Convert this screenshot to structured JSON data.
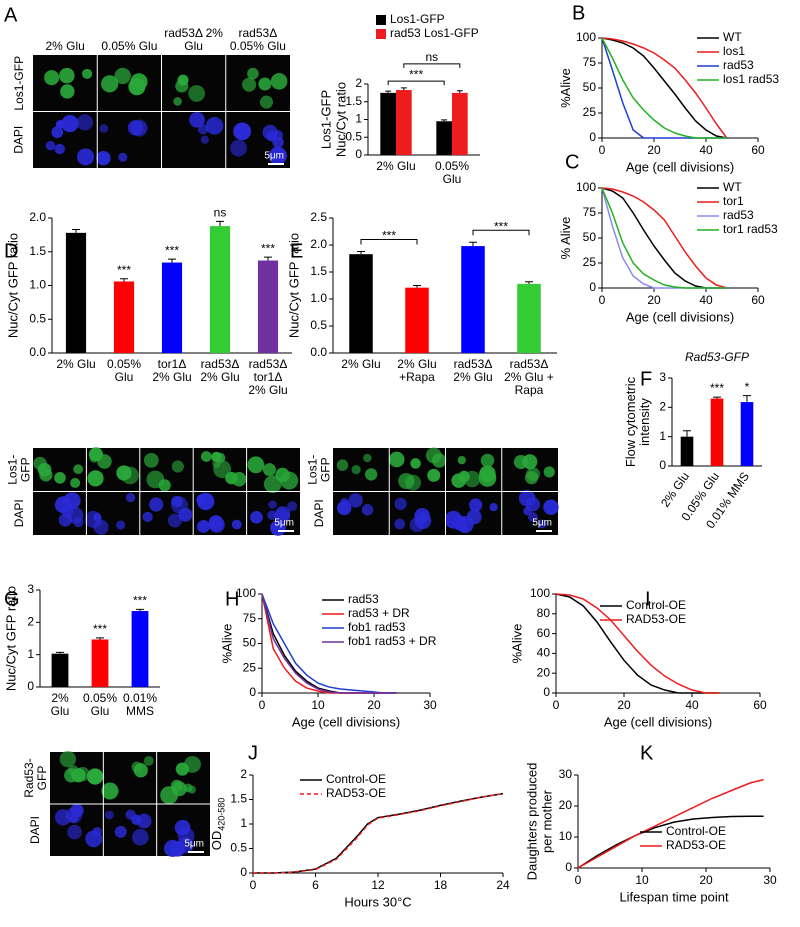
{
  "panels": [
    "A",
    "B",
    "C",
    "D",
    "E",
    "F",
    "G",
    "H",
    "I",
    "J",
    "K"
  ],
  "micrographs": [
    {
      "columns": [
        "2% Glu",
        "0.05% Glu",
        "rad53Δ 2% Glu",
        "rad53Δ 0.05% Glu"
      ],
      "rows": [
        "Los1-GFP",
        "DAPI"
      ],
      "scale": "5μm"
    },
    {
      "rows": [
        "Los1-GFP",
        "DAPI"
      ],
      "scale": "5μm"
    },
    {
      "rows": [
        "Los1-GFP",
        "DAPI"
      ],
      "scale": "5μm"
    },
    {
      "rows": [
        "Rad53-GFP",
        "DAPI"
      ],
      "scale": "5μm"
    }
  ],
  "chart_data": [
    {
      "type": "bar",
      "ylabel": "Los1-GFP Nuc/Cyt ratio",
      "categories": [
        "2% Glu",
        "0.05% Glu"
      ],
      "series": [
        {
          "name": "Los1-GFP",
          "color": "#000000",
          "values": [
            1.75,
            0.95
          ],
          "errors": [
            0.05,
            0.04
          ],
          "significance": "***"
        },
        {
          "name": "rad53 Los1-GFP",
          "color": "#ee1c1c",
          "values": [
            1.83,
            1.75
          ],
          "errors": [
            0.06,
            0.06
          ],
          "significance": "ns"
        }
      ],
      "ylim": [
        0,
        2
      ],
      "yticks": [
        0,
        0.5,
        1,
        1.5,
        2
      ]
    },
    {
      "type": "line",
      "ylabel": "%Alive",
      "xlabel": "Age (cell divisions)",
      "legend": "upper right",
      "x": [
        0,
        4,
        8,
        12,
        16,
        20,
        24,
        28,
        32,
        36,
        40,
        44,
        48
      ],
      "series": [
        {
          "name": "WT",
          "color": "#000000",
          "values": [
            100,
            98,
            95,
            90,
            82,
            70,
            57,
            44,
            30,
            17,
            8,
            2,
            0
          ]
        },
        {
          "name": "los1",
          "color": "#ee1c1c",
          "values": [
            100,
            99,
            97,
            94,
            90,
            85,
            78,
            70,
            58,
            45,
            30,
            14,
            0
          ]
        },
        {
          "name": "rad53",
          "color": "#1f3fd0",
          "values": [
            100,
            68,
            35,
            8,
            0,
            0,
            0,
            0,
            0,
            0,
            0,
            0,
            0
          ]
        },
        {
          "name": "los1 rad53",
          "color": "#22b222",
          "values": [
            100,
            80,
            58,
            40,
            28,
            18,
            10,
            5,
            2,
            0,
            0,
            0,
            0
          ]
        }
      ],
      "xlim": [
        0,
        60
      ],
      "xticks": [
        0,
        20,
        40,
        60
      ],
      "ylim": [
        0,
        100
      ],
      "yticks": [
        0,
        25,
        50,
        75,
        100
      ]
    },
    {
      "type": "line",
      "ylabel": "% Alive",
      "xlabel": "Age (cell divisions)",
      "legend": "upper right",
      "x": [
        0,
        4,
        8,
        12,
        16,
        20,
        24,
        28,
        32,
        36,
        40,
        44,
        48
      ],
      "series": [
        {
          "name": "WT",
          "color": "#000000",
          "values": [
            100,
            97,
            90,
            75,
            58,
            42,
            28,
            15,
            7,
            2,
            0,
            0,
            0
          ]
        },
        {
          "name": "tor1",
          "color": "#ee1c1c",
          "values": [
            100,
            99,
            96,
            92,
            86,
            78,
            68,
            52,
            36,
            22,
            10,
            3,
            0
          ]
        },
        {
          "name": "rad53",
          "color": "#8a8af0",
          "values": [
            100,
            62,
            30,
            12,
            4,
            0,
            0,
            0,
            0,
            0,
            0,
            0,
            0
          ]
        },
        {
          "name": "tor1 rad53",
          "color": "#22b222",
          "values": [
            100,
            75,
            45,
            25,
            14,
            8,
            3,
            1,
            0,
            0,
            0,
            0,
            0
          ]
        }
      ],
      "xlim": [
        0,
        60
      ],
      "xticks": [
        0,
        20,
        40,
        60
      ],
      "ylim": [
        0,
        100
      ],
      "yticks": [
        0,
        25,
        50,
        75,
        100
      ]
    },
    {
      "type": "bar",
      "ylabel": "Nuc/Cyt GFP ratio",
      "categories": [
        "2% Glu",
        "0.05% Glu",
        "tor1Δ 2% Glu",
        "rad53Δ 2% Glu",
        "rad53Δ tor1Δ 2% Glu"
      ],
      "values": [
        1.78,
        1.06,
        1.34,
        1.88,
        1.37
      ],
      "errors": [
        0.05,
        0.04,
        0.05,
        0.07,
        0.05
      ],
      "colors": [
        "#000000",
        "#ff0000",
        "#0000ff",
        "#33cc33",
        "#7030a0"
      ],
      "significance": [
        null,
        "***",
        "***",
        "ns",
        "***"
      ],
      "significance_style": "above",
      "ylim": [
        0,
        2
      ],
      "yticks": [
        {
          "value": 0,
          "label": "0.0"
        },
        0.5,
        {
          "value": 1,
          "label": "1.0"
        },
        1.5,
        {
          "value": 2,
          "label": "2.0"
        }
      ]
    },
    {
      "type": "bar",
      "ylabel": "Nuc/Cyt GFP ratio",
      "categories": [
        "2% Glu",
        "2% Glu +Rapa",
        "rad53Δ 2% Glu",
        "rad53Δ 2% Glu + Rapa"
      ],
      "values": [
        1.83,
        1.21,
        1.98,
        1.28
      ],
      "errors": [
        0.05,
        0.04,
        0.07,
        0.04
      ],
      "colors": [
        "#000000",
        "#ff0000",
        "#0000ff",
        "#33cc33"
      ],
      "significance": [
        null,
        "***",
        null,
        "***"
      ],
      "significance_style": "bracket",
      "ylim": [
        0,
        2.5
      ],
      "yticks": [
        {
          "value": 0,
          "label": "0.0"
        },
        0.5,
        {
          "value": 1,
          "label": "1.0"
        },
        1.5,
        {
          "value": 2,
          "label": "2.0"
        },
        2.5
      ]
    },
    {
      "type": "bar",
      "title": "Rad53-GFP",
      "ylabel": "Flow cytometric intensity",
      "categories": [
        "2% Glu",
        "0.05% Glu",
        "0.01% MMS"
      ],
      "xtick_rotation": -55,
      "values": [
        1.0,
        2.3,
        2.18
      ],
      "errors": [
        0.2,
        0.05,
        0.22
      ],
      "colors": [
        "#000000",
        "#ff0000",
        "#0000ff"
      ],
      "significance": [
        null,
        "***",
        "*"
      ],
      "significance_style": "above",
      "ylim": [
        0,
        3
      ],
      "yticks": [
        0,
        1,
        2,
        3
      ]
    },
    {
      "type": "bar",
      "ylabel": "Nuc/Cyt GFP ratio",
      "categories": [
        "2% Glu",
        "0.05% Glu",
        "0.01% MMS"
      ],
      "values": [
        1.03,
        1.47,
        2.35
      ],
      "errors": [
        0.04,
        0.05,
        0.05
      ],
      "colors": [
        "#000000",
        "#ff0000",
        "#0000ff"
      ],
      "significance": [
        null,
        "***",
        "***"
      ],
      "significance_style": "above",
      "ylim": [
        0,
        3
      ],
      "yticks": [
        0,
        1,
        2,
        3
      ]
    },
    {
      "type": "line",
      "ylabel": "%Alive",
      "xlabel": "Age (cell divisions)",
      "legend": "upper right",
      "x": [
        0,
        2,
        4,
        6,
        8,
        10,
        12,
        14,
        16,
        18,
        20,
        22,
        24
      ],
      "series": [
        {
          "name": "rad53",
          "color": "#000000",
          "values": [
            100,
            60,
            38,
            22,
            12,
            5,
            2,
            0,
            0,
            0,
            0,
            0,
            0
          ]
        },
        {
          "name": "rad53 + DR",
          "color": "#ee1c1c",
          "values": [
            100,
            45,
            25,
            12,
            5,
            2,
            0,
            0,
            0,
            0,
            0,
            0,
            0
          ]
        },
        {
          "name": "fob1 rad53",
          "color": "#1f3fd0",
          "values": [
            100,
            70,
            50,
            30,
            18,
            10,
            6,
            4,
            3,
            2,
            1,
            0,
            0
          ]
        },
        {
          "name": "fob1 rad53 + DR",
          "color": "#7030a0",
          "values": [
            100,
            55,
            35,
            20,
            10,
            4,
            1,
            0,
            0,
            0,
            0,
            0,
            0
          ]
        }
      ],
      "xlim": [
        0,
        30
      ],
      "xticks": [
        0,
        10,
        20,
        30
      ],
      "ylim": [
        0,
        100
      ],
      "yticks": [
        0,
        25,
        50,
        75,
        100
      ]
    },
    {
      "type": "line",
      "ylabel": "%Alive",
      "xlabel": "Age (cell divisions)",
      "legend": "upper right",
      "x": [
        0,
        4,
        8,
        12,
        16,
        20,
        24,
        28,
        32,
        36,
        40,
        44,
        48
      ],
      "series": [
        {
          "name": "Control-OE",
          "color": "#000000",
          "values": [
            100,
            97,
            88,
            72,
            52,
            33,
            18,
            8,
            3,
            0,
            0,
            0,
            0
          ]
        },
        {
          "name": "RAD53-OE",
          "color": "#ee1c1c",
          "values": [
            100,
            99,
            95,
            86,
            74,
            58,
            42,
            28,
            17,
            9,
            3,
            0,
            0
          ]
        }
      ],
      "xlim": [
        0,
        60
      ],
      "xticks": [
        0,
        20,
        40,
        60
      ],
      "ylim": [
        0,
        100
      ],
      "yticks": [
        0,
        20,
        40,
        60,
        80,
        100
      ]
    },
    {
      "type": "line",
      "ylabel": "OD",
      "ylabel_sub": "420-580",
      "xlabel": "Hours 30°C",
      "legend": "upper left",
      "x": [
        0,
        2,
        4,
        6,
        8,
        10,
        11,
        12,
        14,
        16,
        18,
        20,
        22,
        24
      ],
      "series": [
        {
          "name": "Control-OE",
          "color": "#000000",
          "values": [
            0,
            0,
            0.02,
            0.08,
            0.3,
            0.75,
            1.0,
            1.13,
            1.2,
            1.28,
            1.38,
            1.47,
            1.55,
            1.62
          ]
        },
        {
          "name": "RAD53-OE",
          "color": "#ee1c1c",
          "dash": true,
          "values": [
            0,
            0,
            0.02,
            0.07,
            0.28,
            0.72,
            0.98,
            1.12,
            1.19,
            1.27,
            1.37,
            1.46,
            1.55,
            1.62
          ]
        }
      ],
      "xlim": [
        0,
        24
      ],
      "xticks": [
        0,
        6,
        12,
        18,
        24
      ],
      "ylim": [
        0,
        2
      ],
      "yticks": [
        0,
        0.5,
        1,
        1.5,
        2
      ]
    },
    {
      "type": "line",
      "ylabel": "Daughters produced per mother",
      "xlabel": "Lifespan time point",
      "legend": "lower right",
      "x": [
        0,
        3,
        6,
        9,
        12,
        15,
        18,
        21,
        24,
        27,
        29
      ],
      "series": [
        {
          "name": "Control-OE",
          "color": "#000000",
          "values": [
            0,
            4,
            7.5,
            10.5,
            13,
            14.8,
            15.8,
            16.3,
            16.6,
            16.7,
            16.7
          ]
        },
        {
          "name": "RAD53-OE",
          "color": "#ee1c1c",
          "values": [
            0,
            3.5,
            7,
            10.5,
            13.5,
            16.5,
            19.5,
            22.5,
            25,
            27.5,
            28.5
          ]
        }
      ],
      "xlim": [
        0,
        30
      ],
      "xticks": [
        0,
        10,
        20,
        30
      ],
      "ylim": [
        0,
        30
      ],
      "yticks": [
        0,
        10,
        20,
        30
      ]
    }
  ]
}
